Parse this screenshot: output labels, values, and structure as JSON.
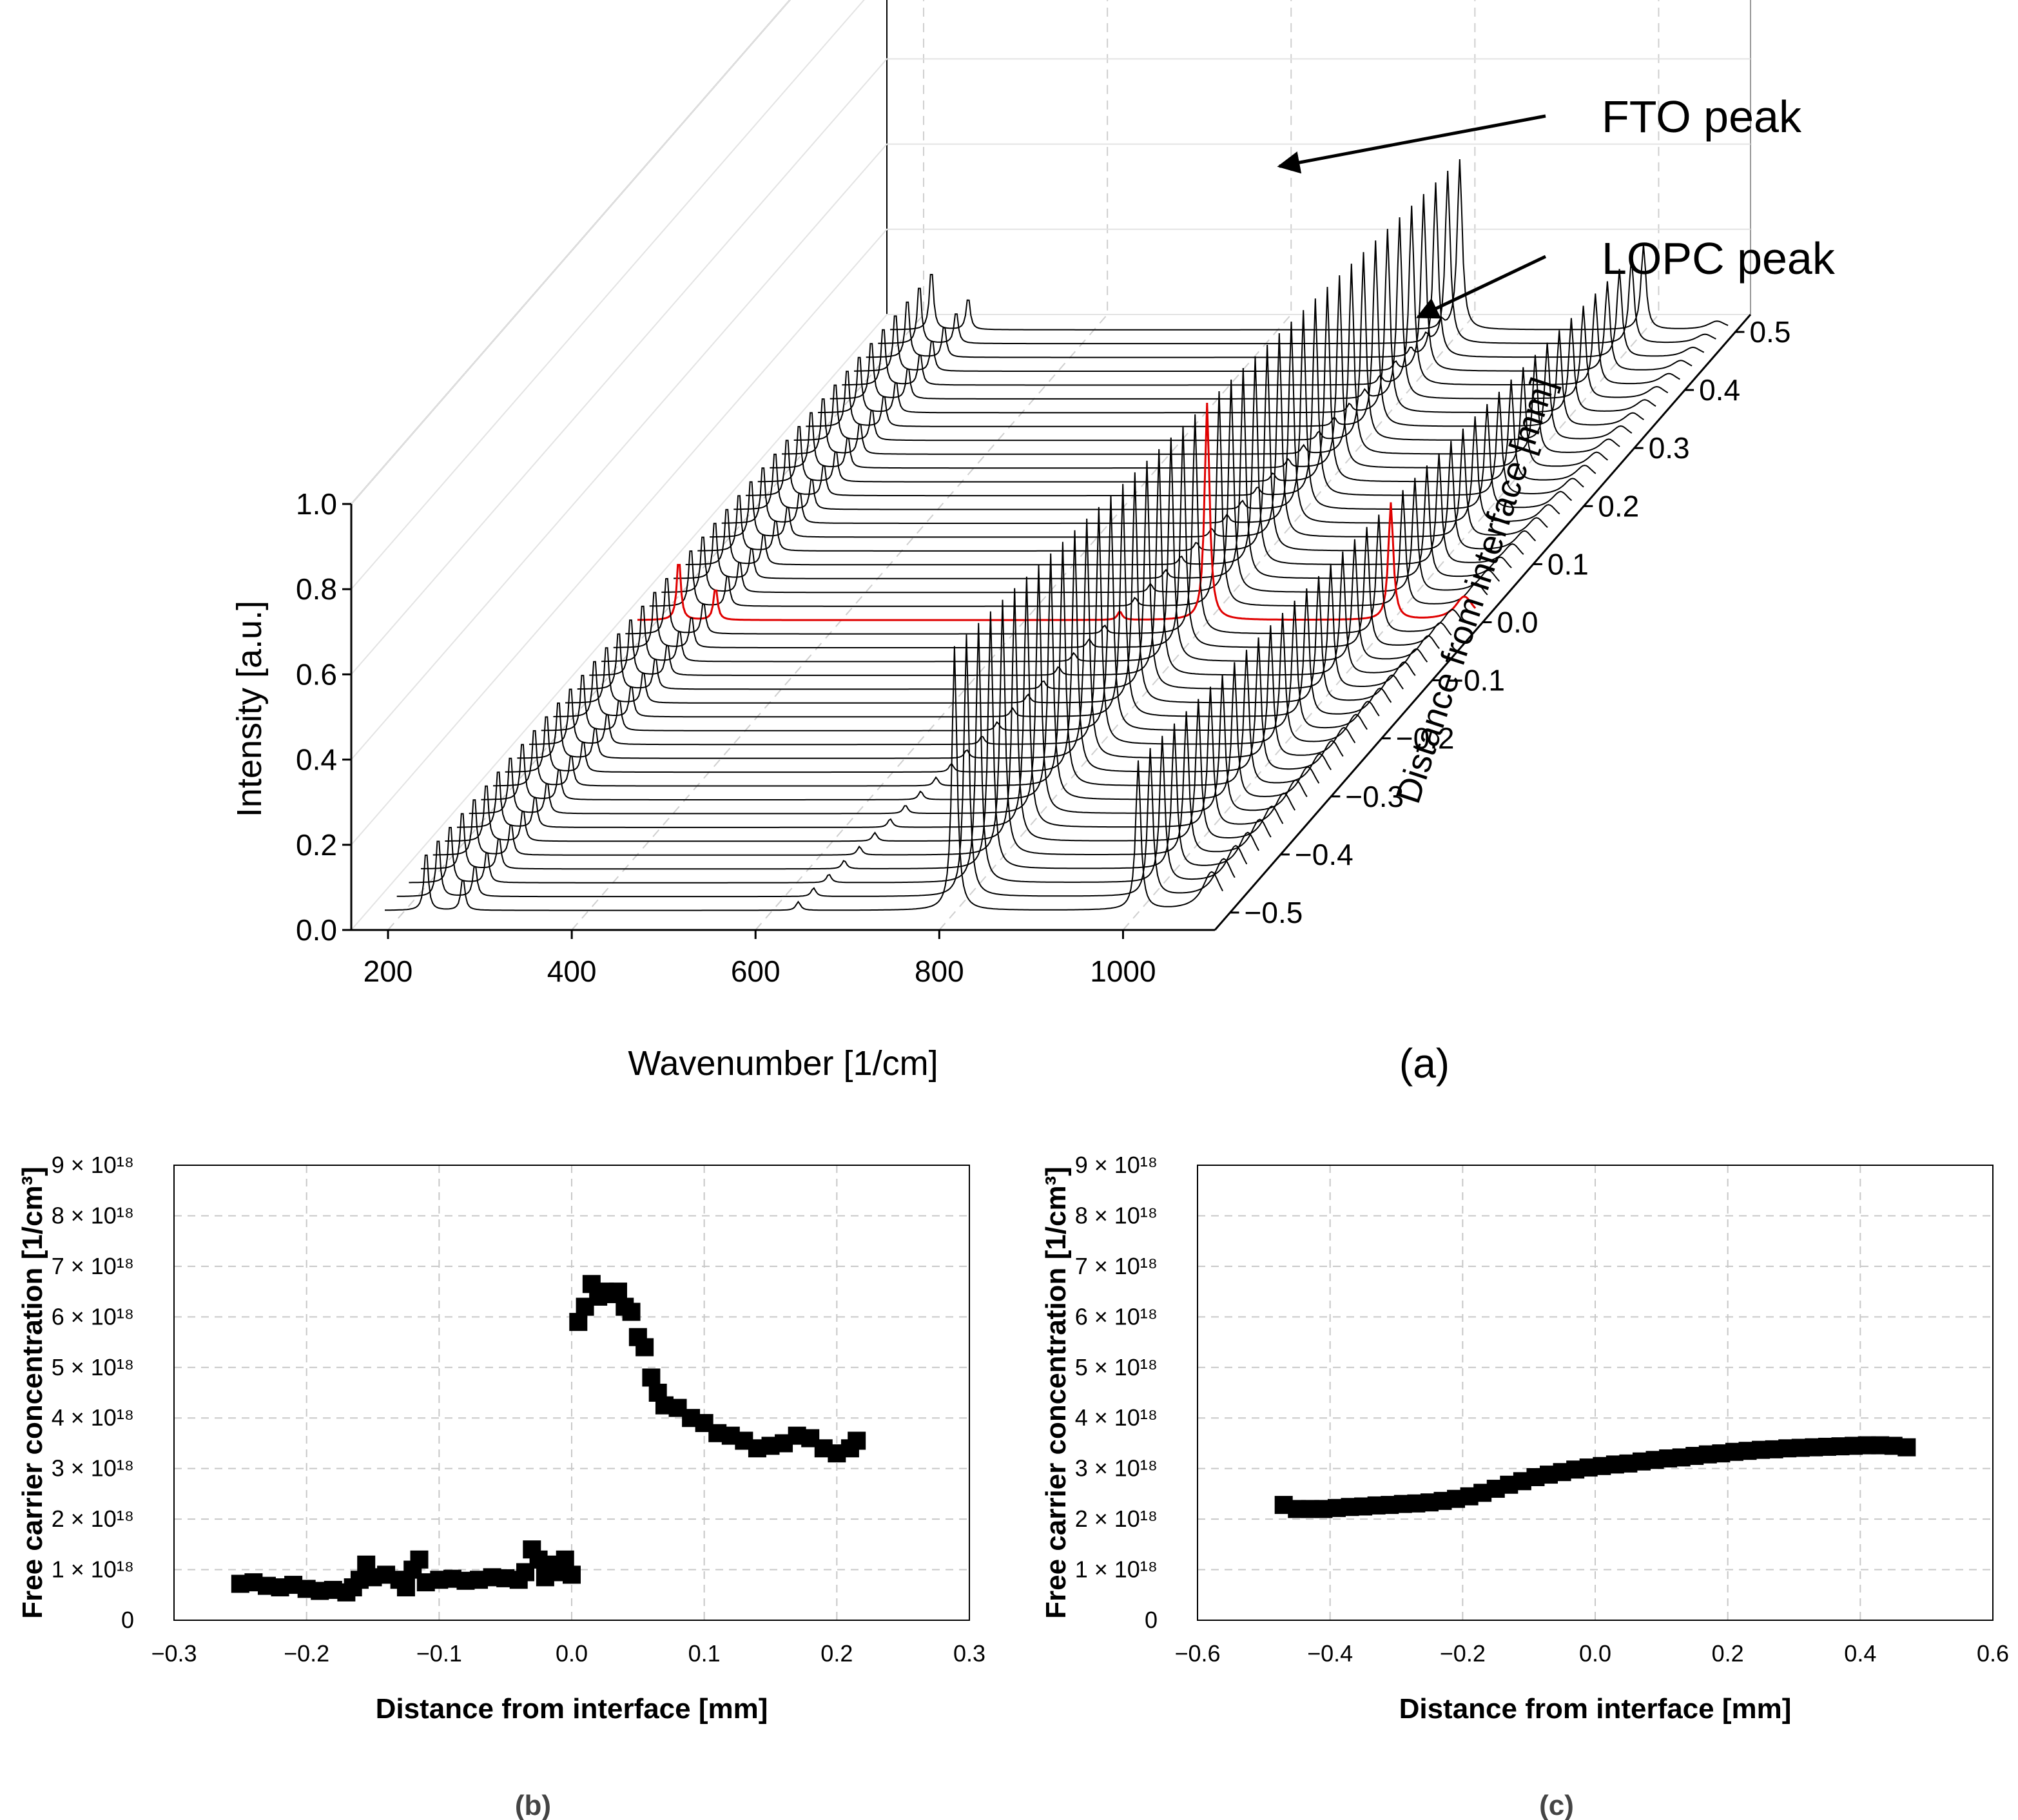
{
  "chart_data": [
    {
      "type": "waterfall",
      "panel_label": "(a)",
      "xlabel": "Wavenumber [1/cm]",
      "ylabel": "Intensity [a.u.]",
      "zlabel": "Distance from interface [mm]",
      "x_ticks": [
        "200",
        "400",
        "600",
        "800",
        "1000"
      ],
      "y_ticks": [
        "0.0",
        "0.2",
        "0.4",
        "0.6",
        "0.8",
        "1.0"
      ],
      "z_ticks": [
        "−0.5",
        "−0.4",
        "−0.3",
        "−0.2",
        "−0.1",
        "0.0",
        "0.1",
        "0.2",
        "0.3",
        "0.4",
        "0.5"
      ],
      "xlim": [
        160,
        1100
      ],
      "ylim": [
        0,
        1
      ],
      "zlim": [
        -0.53,
        0.53
      ],
      "n_spectra": 43,
      "highlight": {
        "distance": 0.0,
        "color": "#e00000"
      },
      "line_color": "#000000",
      "annotations": [
        "FTO peak",
        "LOPC peak"
      ],
      "peaks_wavenumber": {
        "FTO": 1000,
        "LOPC": 1080,
        "strong_mode": 800
      }
    },
    {
      "type": "scatter",
      "panel_label": "(b)",
      "xlabel": "Distance from interface [mm]",
      "ylabel": "Free carrier concentration [1/cm³]",
      "xlim": [
        -0.3,
        0.3
      ],
      "ylim": [
        0,
        9e+18
      ],
      "x_ticks": [
        "−0.3",
        "−0.2",
        "−0.1",
        "0.0",
        "0.1",
        "0.2",
        "0.3"
      ],
      "y_ticks": [
        "0",
        "1 × 10¹⁸",
        "2 × 10¹⁸",
        "3 × 10¹⁸",
        "4 × 10¹⁸",
        "5 × 10¹⁸",
        "6 × 10¹⁸",
        "7 × 10¹⁸",
        "8 × 10¹⁸",
        "9 × 10¹⁸"
      ],
      "marker": "square",
      "x": [
        -0.25,
        -0.24,
        -0.23,
        -0.22,
        -0.21,
        -0.2,
        -0.19,
        -0.18,
        -0.17,
        -0.165,
        -0.16,
        -0.155,
        -0.15,
        -0.14,
        -0.13,
        -0.125,
        -0.12,
        -0.115,
        -0.11,
        -0.1,
        -0.09,
        -0.08,
        -0.07,
        -0.06,
        -0.05,
        -0.04,
        -0.035,
        -0.03,
        -0.025,
        -0.02,
        -0.015,
        -0.01,
        -0.005,
        0.0,
        0.005,
        0.01,
        0.015,
        0.02,
        0.025,
        0.03,
        0.035,
        0.04,
        0.045,
        0.05,
        0.055,
        0.06,
        0.065,
        0.07,
        0.08,
        0.09,
        0.1,
        0.11,
        0.12,
        0.13,
        0.14,
        0.15,
        0.16,
        0.17,
        0.18,
        0.19,
        0.2,
        0.21,
        0.215
      ],
      "values": [
        7.2e+17,
        7.5e+17,
        6.8e+17,
        6.5e+17,
        7e+17,
        6.2e+17,
        5.8e+17,
        6e+17,
        5.5e+17,
        6.5e+17,
        8e+17,
        1.1e+18,
        8.5e+17,
        9e+17,
        8e+17,
        6.5e+17,
        1e+18,
        1.2e+18,
        7.5e+17,
        8e+17,
        8.2e+17,
        7.8e+17,
        8e+17,
        8.5e+17,
        8.3e+17,
        8e+17,
        9.5e+17,
        1.4e+18,
        1.2e+18,
        8.5e+17,
        1.1e+18,
        9.5e+17,
        1.2e+18,
        9e+17,
        5.9e+18,
        6.2e+18,
        6.65e+18,
        6.4e+18,
        6.5e+18,
        6.45e+18,
        6.5e+18,
        6.2e+18,
        6.1e+18,
        5.6e+18,
        5.4e+18,
        4.8e+18,
        4.5e+18,
        4.25e+18,
        4.2e+18,
        4e+18,
        3.9e+18,
        3.7e+18,
        3.65e+18,
        3.55e+18,
        3.4e+18,
        3.45e+18,
        3.5e+18,
        3.65e+18,
        3.6e+18,
        3.4e+18,
        3.3e+18,
        3.4e+18,
        3.55e+18
      ]
    },
    {
      "type": "scatter",
      "panel_label": "(c)",
      "xlabel": "Distance from interface [mm]",
      "ylabel": "Free carrier concentration [1/cm³]",
      "xlim": [
        -0.6,
        0.6
      ],
      "ylim": [
        0,
        9e+18
      ],
      "x_ticks": [
        "−0.6",
        "−0.4",
        "−0.2",
        "0.0",
        "0.2",
        "0.4",
        "0.6"
      ],
      "y_ticks": [
        "0",
        "1 × 10¹⁸",
        "2 × 10¹⁸",
        "3 × 10¹⁸",
        "4 × 10¹⁸",
        "5 × 10¹⁸",
        "6 × 10¹⁸",
        "7 × 10¹⁸",
        "8 × 10¹⁸",
        "9 × 10¹⁸"
      ],
      "marker": "square",
      "x": [
        -0.47,
        -0.45,
        -0.43,
        -0.41,
        -0.39,
        -0.37,
        -0.35,
        -0.33,
        -0.31,
        -0.29,
        -0.27,
        -0.25,
        -0.23,
        -0.21,
        -0.19,
        -0.17,
        -0.15,
        -0.13,
        -0.11,
        -0.09,
        -0.07,
        -0.05,
        -0.03,
        -0.01,
        0.01,
        0.03,
        0.05,
        0.07,
        0.09,
        0.11,
        0.13,
        0.15,
        0.17,
        0.19,
        0.21,
        0.23,
        0.25,
        0.27,
        0.29,
        0.31,
        0.33,
        0.35,
        0.37,
        0.39,
        0.41,
        0.43,
        0.45,
        0.47
      ],
      "values": [
        2.28e+18,
        2.2e+18,
        2.2e+18,
        2.2e+18,
        2.22e+18,
        2.24e+18,
        2.25e+18,
        2.27e+18,
        2.28e+18,
        2.3e+18,
        2.31e+18,
        2.33e+18,
        2.36e+18,
        2.4e+18,
        2.45e+18,
        2.52e+18,
        2.6e+18,
        2.68e+18,
        2.75e+18,
        2.83e+18,
        2.88e+18,
        2.93e+18,
        2.98e+18,
        3.02e+18,
        3.05e+18,
        3.08e+18,
        3.1e+18,
        3.14e+18,
        3.17e+18,
        3.2e+18,
        3.22e+18,
        3.25e+18,
        3.28e+18,
        3.3e+18,
        3.33e+18,
        3.35e+18,
        3.37e+18,
        3.38e+18,
        3.4e+18,
        3.41e+18,
        3.42e+18,
        3.43e+18,
        3.44e+18,
        3.45e+18,
        3.46e+18,
        3.46e+18,
        3.45e+18,
        3.42e+18
      ]
    }
  ]
}
